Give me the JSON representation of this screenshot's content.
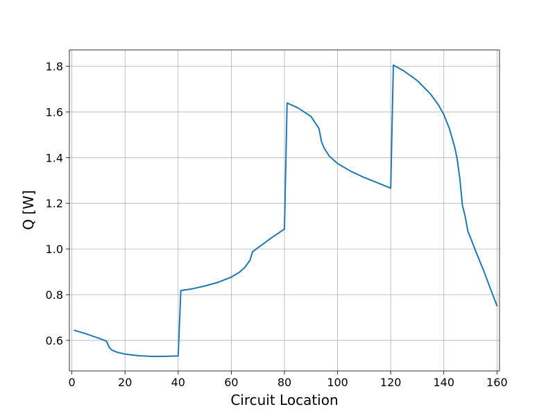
{
  "chart_data": {
    "type": "line",
    "title": "",
    "xlabel": "Circuit Location",
    "ylabel": "Q [W]",
    "xlim": [
      -0.95,
      160.95
    ],
    "ylim": [
      0.4663,
      1.8712
    ],
    "xticks": [
      0,
      20,
      40,
      60,
      80,
      100,
      120,
      140,
      160
    ],
    "xtick_labels": [
      "0",
      "20",
      "40",
      "60",
      "80",
      "100",
      "120",
      "140",
      "160"
    ],
    "yticks": [
      0.6,
      0.8,
      1.0,
      1.2,
      1.4,
      1.6,
      1.8
    ],
    "ytick_labels": [
      "0.6",
      "0.8",
      "1.0",
      "1.2",
      "1.4",
      "1.6",
      "1.8"
    ],
    "grid": true,
    "series": [
      {
        "color": "#1f77b4",
        "x": [
          1,
          5,
          10,
          13,
          14,
          15,
          17,
          20,
          25,
          30,
          35,
          40,
          41,
          45,
          50,
          55,
          60,
          63,
          65,
          67,
          68,
          70,
          75,
          80,
          81,
          85,
          90,
          93,
          94,
          95,
          97,
          100,
          105,
          110,
          115,
          120,
          121,
          125,
          130,
          135,
          138,
          140,
          142,
          144,
          145,
          146,
          147,
          148,
          149,
          150,
          152,
          155,
          158,
          160
        ],
        "y": [
          0.644,
          0.63,
          0.61,
          0.597,
          0.57,
          0.558,
          0.548,
          0.54,
          0.533,
          0.53,
          0.53,
          0.532,
          0.818,
          0.825,
          0.838,
          0.854,
          0.877,
          0.898,
          0.918,
          0.95,
          0.988,
          1.005,
          1.048,
          1.087,
          1.639,
          1.618,
          1.58,
          1.527,
          1.468,
          1.44,
          1.405,
          1.374,
          1.34,
          1.313,
          1.29,
          1.266,
          1.805,
          1.779,
          1.737,
          1.678,
          1.63,
          1.588,
          1.53,
          1.45,
          1.395,
          1.31,
          1.19,
          1.145,
          1.08,
          1.05,
          0.99,
          0.905,
          0.812,
          0.752
        ]
      }
    ]
  }
}
